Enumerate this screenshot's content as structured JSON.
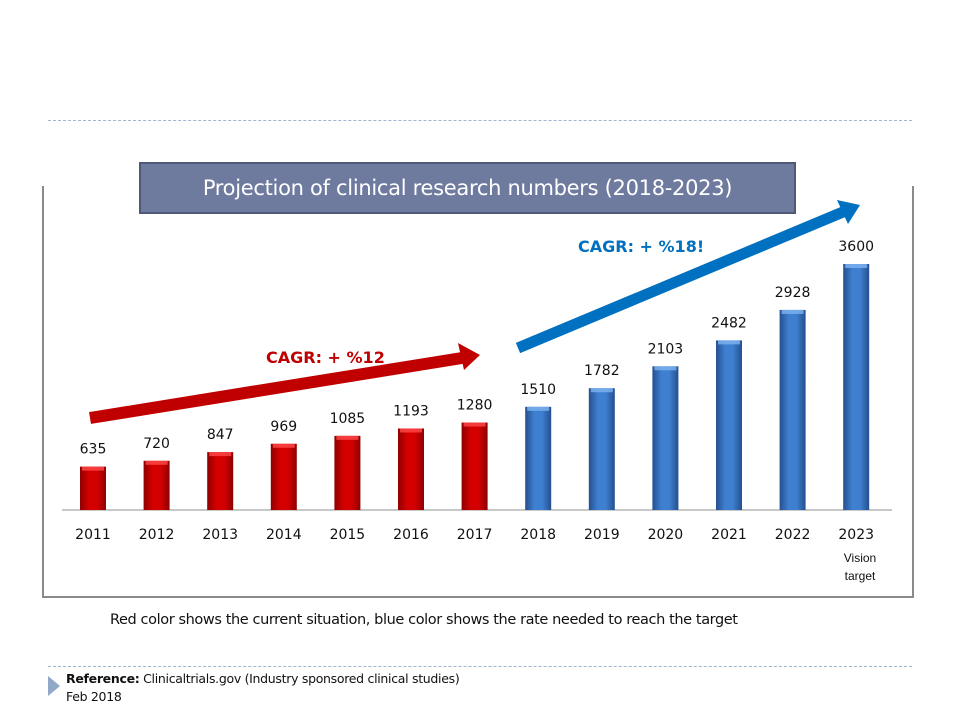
{
  "slide": {
    "caption": "Red color shows the current situation, blue color shows the rate needed to reach the target",
    "reference_label": "Reference:",
    "reference_text": " Clinicaltrials.gov  (Industry sponsored clinical studies)",
    "reference_date": "Feb 2018"
  },
  "colors": {
    "historical": "#cc0000",
    "projection": "#3a78c8",
    "title_bg": "#6f7a9f",
    "red_arrow": "#c00000",
    "blue_arrow": "#0070c0"
  },
  "chart_data": {
    "type": "bar",
    "title": "Projection of clinical research numbers (2018-2023)",
    "xlabel": "",
    "ylabel": "",
    "ylim": [
      0,
      3600
    ],
    "grid": false,
    "categories": [
      "2011",
      "2012",
      "2013",
      "2014",
      "2015",
      "2016",
      "2017",
      "2018",
      "2019",
      "2020",
      "2021",
      "2022",
      "2023"
    ],
    "series": [
      {
        "name": "Current situation",
        "color": "red",
        "values": [
          635,
          720,
          847,
          969,
          1085,
          1193,
          1280,
          null,
          null,
          null,
          null,
          null,
          null
        ]
      },
      {
        "name": "Rate needed to reach the target",
        "color": "blue",
        "values": [
          null,
          null,
          null,
          null,
          null,
          null,
          null,
          1510,
          1782,
          2103,
          2482,
          2928,
          3600
        ]
      }
    ],
    "values": [
      635,
      720,
      847,
      969,
      1085,
      1193,
      1280,
      1510,
      1782,
      2103,
      2482,
      2928,
      3600
    ],
    "category_notes": {
      "2023": "Vision\ntarget"
    },
    "annotations": [
      {
        "text": "CAGR: + %12",
        "applies_to": "2011-2017",
        "color": "red"
      },
      {
        "text": "CAGR: + %18!",
        "applies_to": "2018-2023",
        "color": "blue"
      }
    ]
  }
}
